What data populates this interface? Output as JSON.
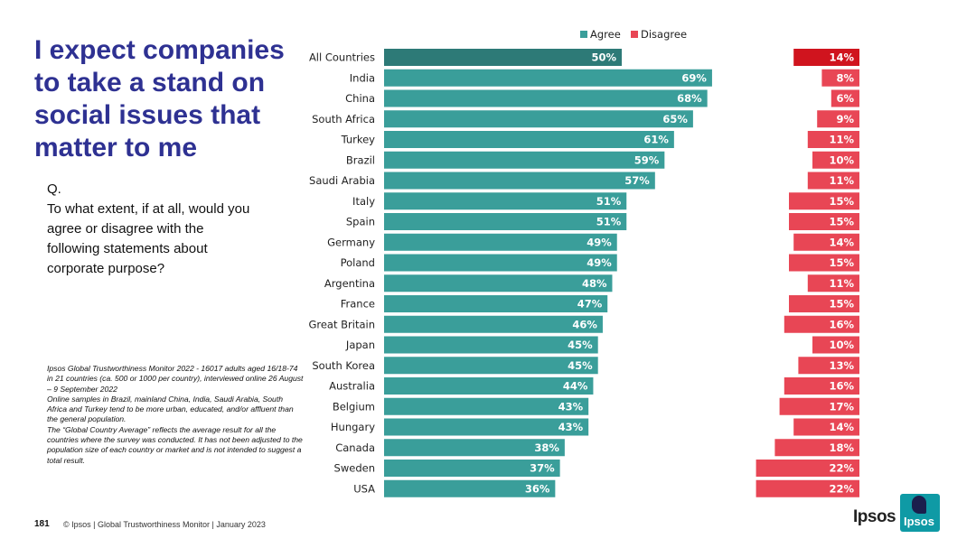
{
  "title": "I expect companies to take a stand on social issues that matter to me",
  "question": {
    "prefix": "Q.",
    "text": "To what extent, if at all, would you agree or disagree with the following statements about corporate purpose?"
  },
  "notes": [
    "Ipsos Global Trustworthiness Monitor 2022 - 16017 adults aged 16/18-74 in 21 countries (ca. 500 or 1000 per country), interviewed online 26 August – 9 September 2022",
    "Online samples in Brazil, mainland China, India, Saudi Arabia, South Africa and Turkey tend to be more urban, educated, and/or affluent than the general population.",
    "The “Global Country Average” reflects the average result for all the countries where the survey was conducted. It has not been adjusted to the population size of each country or market and is not intended to suggest a total result."
  ],
  "footer": {
    "page_number": "181",
    "text": "© Ipsos | Global Trustworthiness Monitor | January 2023"
  },
  "logo": {
    "wordmark": "Ipsos",
    "box_text": "Ipsos"
  },
  "chart_data": {
    "type": "bar",
    "orientation": "horizontal",
    "legend_position": "top",
    "categories": [
      "All Countries",
      "India",
      "China",
      "South Africa",
      "Turkey",
      "Brazil",
      "Saudi Arabia",
      "Italy",
      "Spain",
      "Germany",
      "Poland",
      "Argentina",
      "France",
      "Great Britain",
      "Japan",
      "South Korea",
      "Australia",
      "Belgium",
      "Hungary",
      "Canada",
      "Sweden",
      "USA"
    ],
    "series": [
      {
        "name": "Agree",
        "color": "#3a9e9a",
        "highlight_color": "#2d7a77",
        "values": [
          50,
          69,
          68,
          65,
          61,
          59,
          57,
          51,
          51,
          49,
          49,
          48,
          47,
          46,
          45,
          45,
          44,
          43,
          43,
          38,
          37,
          36
        ]
      },
      {
        "name": "Disagree",
        "color": "#e84655",
        "highlight_color": "#d0141e",
        "values": [
          14,
          8,
          6,
          9,
          11,
          10,
          11,
          15,
          15,
          14,
          15,
          11,
          15,
          16,
          10,
          13,
          16,
          17,
          14,
          18,
          22,
          22
        ]
      }
    ],
    "label_suffix": "%"
  }
}
